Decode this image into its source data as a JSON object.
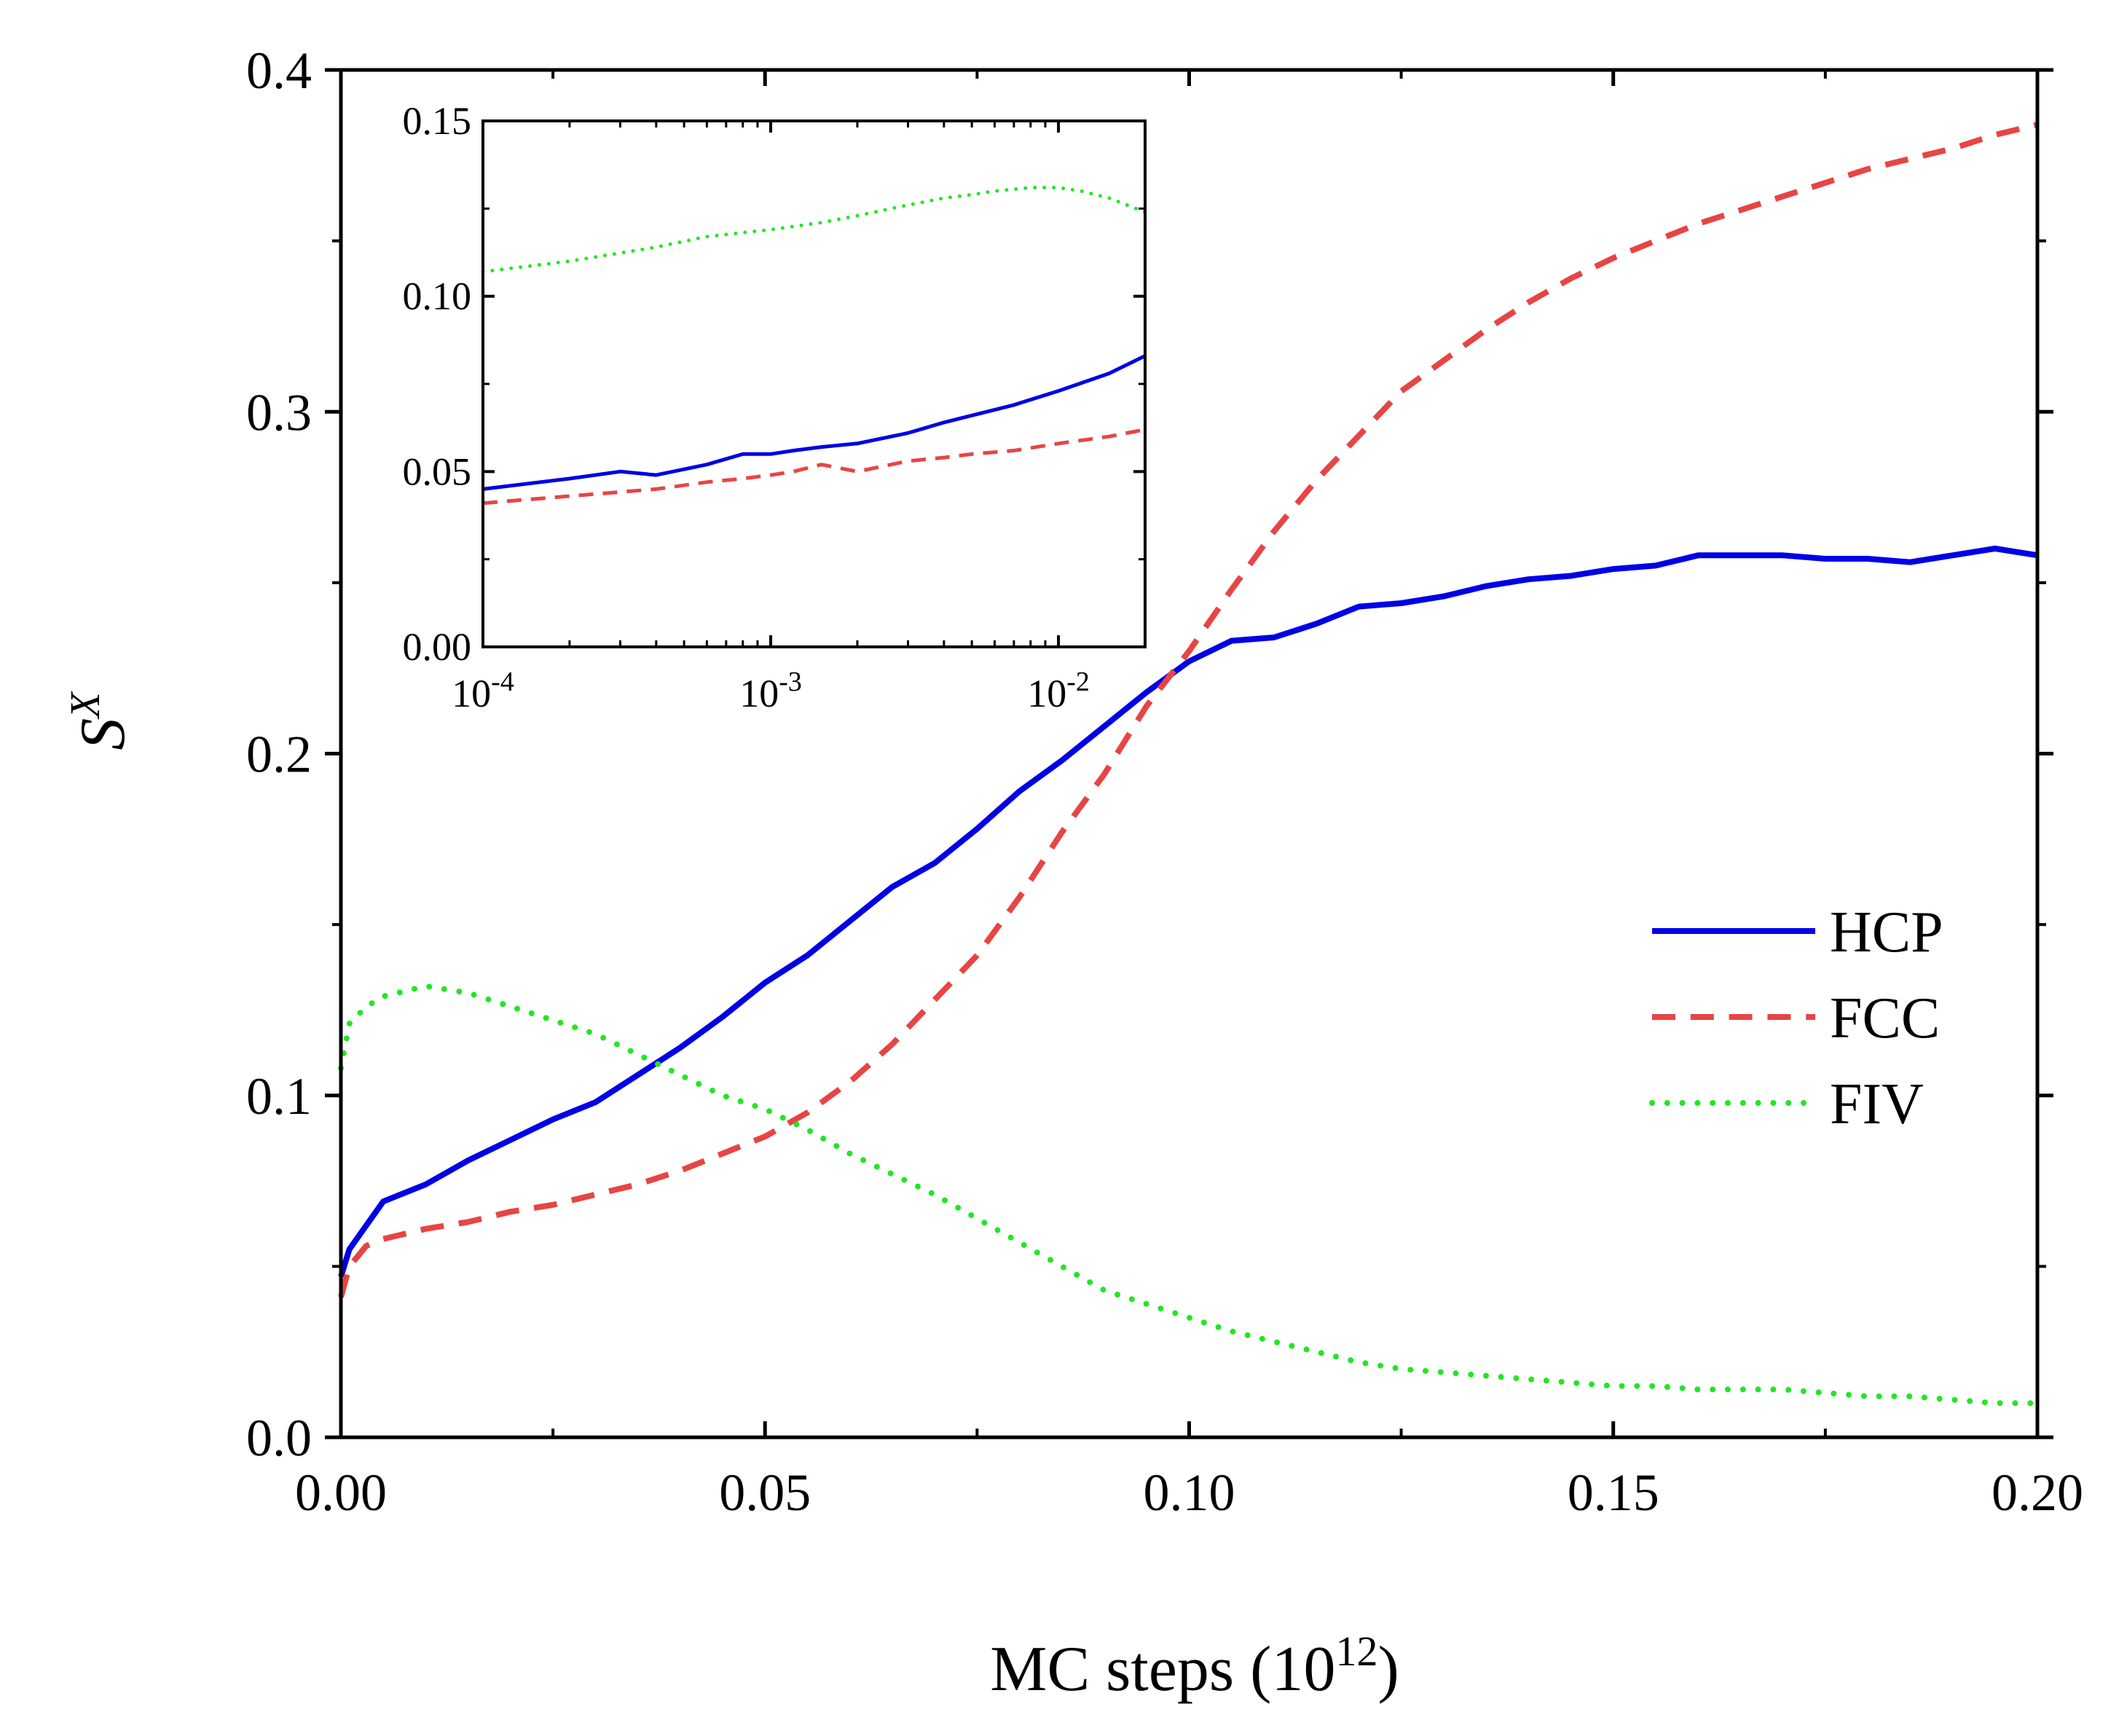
{
  "chart_data": [
    {
      "type": "line",
      "role": "main",
      "title": "",
      "xlabel": "MC steps (10^12)",
      "xlabel_base": "MC steps (10",
      "xlabel_exp": "12",
      "xlabel_close": ")",
      "ylabel_base": "S",
      "ylabel_sup": "X",
      "xlim": [
        0.0,
        0.2
      ],
      "ylim": [
        0.0,
        0.4
      ],
      "xticks": [
        0.0,
        0.05,
        0.1,
        0.15,
        0.2
      ],
      "xtick_labels": [
        "0.00",
        "0.05",
        "0.10",
        "0.15",
        "0.20"
      ],
      "yticks": [
        0.0,
        0.1,
        0.2,
        0.3,
        0.4
      ],
      "ytick_labels": [
        "0.0",
        "0.1",
        "0.2",
        "0.3",
        "0.4"
      ],
      "legend_position": "center-right",
      "series": [
        {
          "name": "HCP",
          "color": "#0000e6",
          "style": "solid",
          "x": [
            0.0,
            0.001,
            0.003,
            0.005,
            0.01,
            0.015,
            0.02,
            0.025,
            0.03,
            0.035,
            0.04,
            0.045,
            0.05,
            0.055,
            0.06,
            0.065,
            0.07,
            0.075,
            0.08,
            0.085,
            0.09,
            0.095,
            0.1,
            0.105,
            0.11,
            0.115,
            0.12,
            0.125,
            0.13,
            0.135,
            0.14,
            0.145,
            0.15,
            0.155,
            0.16,
            0.165,
            0.17,
            0.175,
            0.18,
            0.185,
            0.19,
            0.195,
            0.2
          ],
          "y": [
            0.047,
            0.055,
            0.062,
            0.069,
            0.074,
            0.081,
            0.087,
            0.093,
            0.098,
            0.106,
            0.114,
            0.123,
            0.133,
            0.141,
            0.151,
            0.161,
            0.168,
            0.178,
            0.189,
            0.198,
            0.208,
            0.218,
            0.227,
            0.233,
            0.234,
            0.238,
            0.243,
            0.244,
            0.246,
            0.249,
            0.251,
            0.252,
            0.254,
            0.255,
            0.258,
            0.258,
            0.258,
            0.257,
            0.257,
            0.256,
            0.258,
            0.26,
            0.258
          ]
        },
        {
          "name": "FCC",
          "color": "#e84444",
          "style": "dashed",
          "x": [
            0.0,
            0.001,
            0.003,
            0.005,
            0.01,
            0.015,
            0.02,
            0.025,
            0.03,
            0.035,
            0.04,
            0.045,
            0.05,
            0.055,
            0.06,
            0.065,
            0.07,
            0.075,
            0.08,
            0.085,
            0.09,
            0.095,
            0.1,
            0.105,
            0.11,
            0.115,
            0.12,
            0.125,
            0.13,
            0.135,
            0.14,
            0.145,
            0.15,
            0.155,
            0.16,
            0.165,
            0.17,
            0.175,
            0.18,
            0.185,
            0.19,
            0.195,
            0.2
          ],
          "y": [
            0.041,
            0.05,
            0.056,
            0.058,
            0.061,
            0.063,
            0.066,
            0.068,
            0.071,
            0.074,
            0.078,
            0.083,
            0.088,
            0.095,
            0.104,
            0.115,
            0.128,
            0.141,
            0.158,
            0.177,
            0.194,
            0.214,
            0.23,
            0.248,
            0.265,
            0.28,
            0.293,
            0.306,
            0.315,
            0.324,
            0.332,
            0.339,
            0.345,
            0.35,
            0.355,
            0.359,
            0.363,
            0.367,
            0.371,
            0.374,
            0.377,
            0.381,
            0.384
          ]
        },
        {
          "name": "FIV",
          "color": "#22e622",
          "style": "dotted",
          "x": [
            0.0,
            0.001,
            0.003,
            0.005,
            0.01,
            0.015,
            0.02,
            0.025,
            0.03,
            0.035,
            0.04,
            0.045,
            0.05,
            0.055,
            0.06,
            0.065,
            0.07,
            0.075,
            0.08,
            0.085,
            0.09,
            0.095,
            0.1,
            0.105,
            0.11,
            0.115,
            0.12,
            0.125,
            0.13,
            0.135,
            0.14,
            0.145,
            0.15,
            0.155,
            0.16,
            0.165,
            0.17,
            0.175,
            0.18,
            0.185,
            0.19,
            0.195,
            0.2
          ],
          "y": [
            0.108,
            0.121,
            0.126,
            0.129,
            0.132,
            0.13,
            0.126,
            0.122,
            0.118,
            0.112,
            0.106,
            0.1,
            0.096,
            0.09,
            0.083,
            0.077,
            0.071,
            0.064,
            0.057,
            0.05,
            0.043,
            0.039,
            0.035,
            0.031,
            0.028,
            0.025,
            0.022,
            0.02,
            0.019,
            0.018,
            0.017,
            0.016,
            0.015,
            0.015,
            0.014,
            0.014,
            0.014,
            0.013,
            0.012,
            0.012,
            0.011,
            0.01,
            0.01
          ]
        }
      ]
    },
    {
      "type": "line",
      "role": "inset",
      "xscale": "log",
      "xlim": [
        0.0001,
        0.02
      ],
      "ylim": [
        0.0,
        0.15
      ],
      "xticks": [
        0.0001,
        0.001,
        0.01
      ],
      "xtick_labels": [
        {
          "base": "10",
          "exp": "-4"
        },
        {
          "base": "10",
          "exp": "-3"
        },
        {
          "base": "10",
          "exp": "-2"
        }
      ],
      "yticks": [
        0.0,
        0.05,
        0.1,
        0.15
      ],
      "ytick_labels": [
        "0.00",
        "0.05",
        "0.10",
        "0.15"
      ],
      "series": [
        {
          "name": "HCP",
          "color": "#0000e6",
          "style": "solid",
          "x": [
            0.0001,
            0.0002,
            0.0003,
            0.0004,
            0.0006,
            0.0008,
            0.001,
            0.0012,
            0.0015,
            0.002,
            0.003,
            0.004,
            0.005,
            0.007,
            0.01,
            0.015,
            0.02
          ],
          "y": [
            0.045,
            0.048,
            0.05,
            0.049,
            0.052,
            0.055,
            0.055,
            0.056,
            0.057,
            0.058,
            0.061,
            0.064,
            0.066,
            0.069,
            0.073,
            0.078,
            0.083
          ]
        },
        {
          "name": "FCC",
          "color": "#e84444",
          "style": "dashed",
          "x": [
            0.0001,
            0.0002,
            0.0004,
            0.0006,
            0.0008,
            0.001,
            0.0012,
            0.0015,
            0.002,
            0.003,
            0.004,
            0.005,
            0.007,
            0.01,
            0.015,
            0.02
          ],
          "y": [
            0.041,
            0.043,
            0.045,
            0.047,
            0.048,
            0.049,
            0.05,
            0.052,
            0.05,
            0.053,
            0.054,
            0.055,
            0.056,
            0.058,
            0.06,
            0.062
          ]
        },
        {
          "name": "FIV",
          "color": "#22e622",
          "style": "dotted",
          "x": [
            0.0001,
            0.0002,
            0.0004,
            0.0006,
            0.001,
            0.0015,
            0.002,
            0.003,
            0.004,
            0.005,
            0.006,
            0.008,
            0.01,
            0.012,
            0.015,
            0.02
          ],
          "y": [
            0.107,
            0.11,
            0.114,
            0.117,
            0.119,
            0.121,
            0.123,
            0.126,
            0.128,
            0.129,
            0.13,
            0.131,
            0.131,
            0.13,
            0.128,
            0.124
          ]
        }
      ]
    }
  ]
}
